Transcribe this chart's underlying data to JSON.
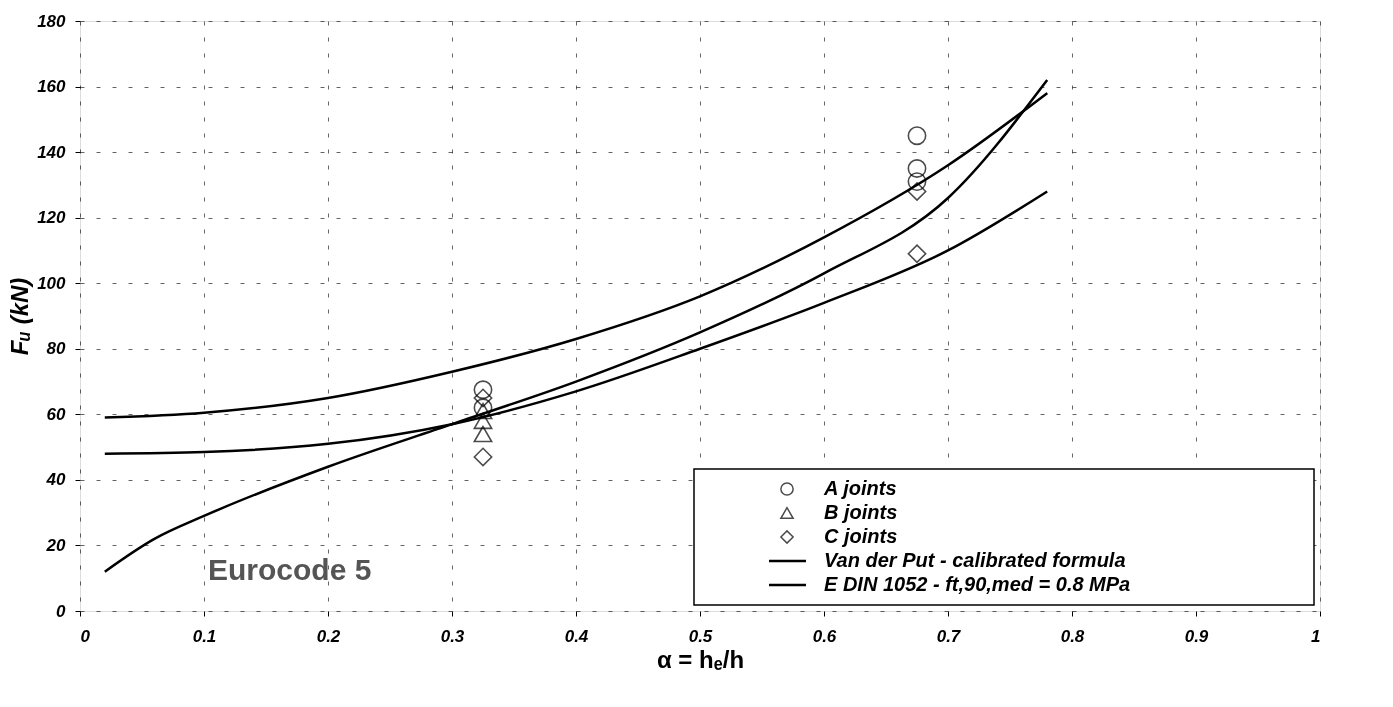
{
  "chart_data": {
    "type": "scatter",
    "xlabel": "α = hₑ/h",
    "ylabel": "Fᵤ (kN)",
    "xlim": [
      0,
      1
    ],
    "ylim": [
      0,
      180
    ],
    "xticks": [
      0,
      0.1,
      0.2,
      0.3,
      0.4,
      0.5,
      0.6,
      0.7,
      0.8,
      0.9,
      1
    ],
    "yticks": [
      0,
      20,
      40,
      60,
      80,
      100,
      120,
      140,
      160,
      180
    ],
    "grid": true,
    "legend": "bottom right",
    "line_style": "solid",
    "series": [
      {
        "name": "A joints",
        "marker": "circle",
        "color": "#000000",
        "x": [
          0.325,
          0.325,
          0.675,
          0.675,
          0.675
        ],
        "values": [
          67.5,
          62,
          145,
          135,
          131
        ]
      },
      {
        "name": "B joints",
        "marker": "triangle",
        "color": "#000000",
        "x": [
          0.325,
          0.325,
          0.325
        ],
        "values": [
          61,
          58,
          54
        ]
      },
      {
        "name": "C joints",
        "marker": "diamond",
        "color": "#000000",
        "x": [
          0.325,
          0.325,
          0.675,
          0.675
        ],
        "values": [
          65,
          47,
          128,
          109
        ]
      },
      {
        "name": "Van der Put  -  calibrated formula",
        "type": "line",
        "marker": "none",
        "color": "#000000",
        "x": [
          0.02,
          0.1,
          0.2,
          0.3,
          0.4,
          0.5,
          0.6,
          0.7,
          0.78
        ],
        "values": [
          59,
          60.5,
          65,
          73,
          83,
          96,
          114,
          136,
          158
        ]
      },
      {
        "name": "E DIN 1052  -  ft,90,med = 0.8 MPa",
        "type": "line",
        "marker": "none",
        "color": "#000000",
        "x": [
          0.02,
          0.1,
          0.2,
          0.3,
          0.4,
          0.5,
          0.6,
          0.7,
          0.78
        ],
        "values": [
          48,
          48.5,
          51,
          57,
          67,
          80,
          94,
          110,
          128
        ]
      },
      {
        "type": "line",
        "marker": "none",
        "color": "#000000",
        "x": [
          0.02,
          0.06,
          0.1,
          0.2,
          0.3,
          0.4,
          0.5,
          0.6,
          0.7,
          0.78
        ],
        "values": [
          12,
          22,
          29,
          44,
          57,
          70,
          85,
          103,
          126,
          162
        ]
      }
    ],
    "annotations": [
      "Eurocode 5"
    ]
  }
}
